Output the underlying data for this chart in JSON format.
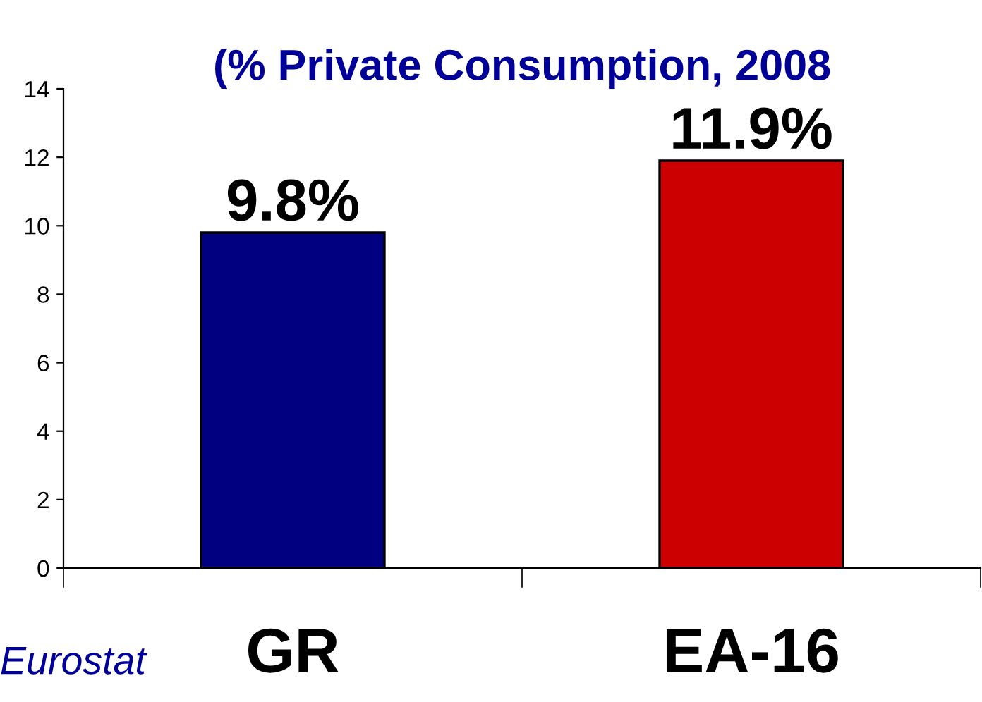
{
  "chart_data": {
    "type": "bar",
    "title": "(% Private Consumption, 2008",
    "categories": [
      "GR",
      "EA-16"
    ],
    "values": [
      9.8,
      11.9
    ],
    "colors": [
      "#000080",
      "#cc0000"
    ],
    "value_labels": [
      "9.8%",
      "11.9%"
    ],
    "ylim": [
      0,
      14
    ],
    "yticks": [
      0,
      2,
      4,
      6,
      8,
      10,
      12,
      14
    ],
    "annotations": [
      "Eurostat"
    ],
    "grid": false,
    "legend": false
  }
}
